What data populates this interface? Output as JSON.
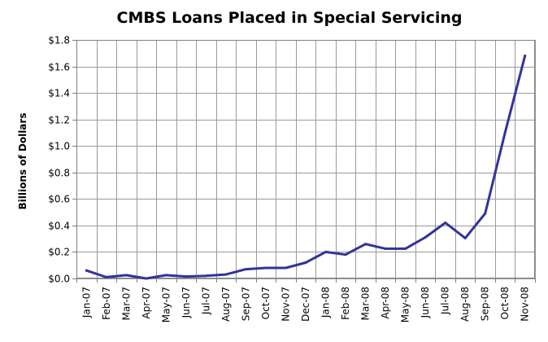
{
  "chart_data": {
    "type": "line",
    "title": "CMBS Loans Placed in Special Servicing",
    "xlabel": "",
    "ylabel": "Billions  of Dollars",
    "categories": [
      "Jan-07",
      "Feb-07",
      "Mar-07",
      "Apr-07",
      "May-07",
      "Jun-07",
      "Jul-07",
      "Aug-07",
      "Sep-07",
      "Oct-07",
      "Nov-07",
      "Dec-07",
      "Jan-08",
      "Feb-08",
      "Mar-08",
      "Apr-08",
      "May-08",
      "Jun-08",
      "Jul-08",
      "Aug-08",
      "Sep-08",
      "Oct-08",
      "Nov-08"
    ],
    "series": [
      {
        "values": [
          0.06,
          0.01,
          0.025,
          0.0,
          0.025,
          0.015,
          0.02,
          0.03,
          0.07,
          0.08,
          0.08,
          0.12,
          0.2,
          0.18,
          0.26,
          0.225,
          0.225,
          0.31,
          0.42,
          0.305,
          0.49,
          1.1,
          1.68
        ],
        "color": "#333399"
      }
    ],
    "ylim": [
      0,
      1.8
    ],
    "yticks": [
      "$0.0",
      "$0.2",
      "$0.4",
      "$0.6",
      "$0.8",
      "$1.0",
      "$1.2",
      "$1.4",
      "$1.6",
      "$1.8"
    ],
    "grid": true,
    "legend": "none"
  }
}
